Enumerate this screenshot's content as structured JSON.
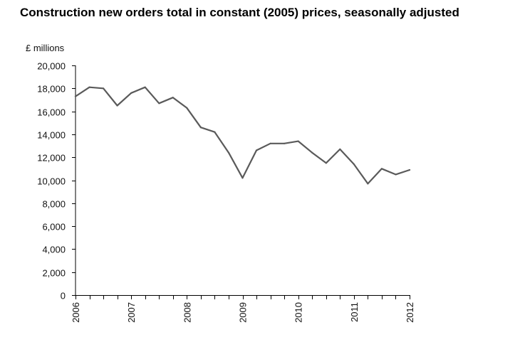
{
  "chart_data": {
    "type": "line",
    "title": "Construction new orders total in constant (2005) prices, seasonally adjusted",
    "ylabel": "£ millions",
    "xlabel": "",
    "ylim": [
      0,
      20000
    ],
    "yticks": [
      0,
      2000,
      4000,
      6000,
      8000,
      10000,
      12000,
      14000,
      16000,
      18000,
      20000
    ],
    "ytick_labels": [
      "0",
      "2,000",
      "4,000",
      "6,000",
      "8,000",
      "10,000",
      "12,000",
      "14,000",
      "16,000",
      "18,000",
      "20,000"
    ],
    "xlim": [
      2006,
      2012
    ],
    "xticks": [
      2006,
      2007,
      2008,
      2009,
      2010,
      2011,
      2012
    ],
    "xtick_labels": [
      "2006",
      "2007",
      "2008",
      "2009",
      "2010",
      "2011",
      "2012"
    ],
    "minor_ticks_per_year": 4,
    "grid": false,
    "legend": "none",
    "line_color": "#5a5a5a",
    "series": [
      {
        "x": [
          2006.0,
          2006.25,
          2006.5,
          2006.75,
          2007.0,
          2007.25,
          2007.5,
          2007.75,
          2008.0,
          2008.25,
          2008.5,
          2008.75,
          2009.0,
          2009.25,
          2009.5,
          2009.75,
          2010.0,
          2010.25,
          2010.5,
          2010.75,
          2011.0,
          2011.25,
          2011.5,
          2011.75,
          2012.0
        ],
        "values": [
          17300,
          18100,
          18000,
          16500,
          17600,
          18100,
          16700,
          17200,
          16300,
          14600,
          14200,
          12400,
          10200,
          12600,
          13200,
          13200,
          13400,
          12400,
          11500,
          12700,
          11400,
          9700,
          11000,
          10500,
          10900
        ]
      }
    ]
  }
}
